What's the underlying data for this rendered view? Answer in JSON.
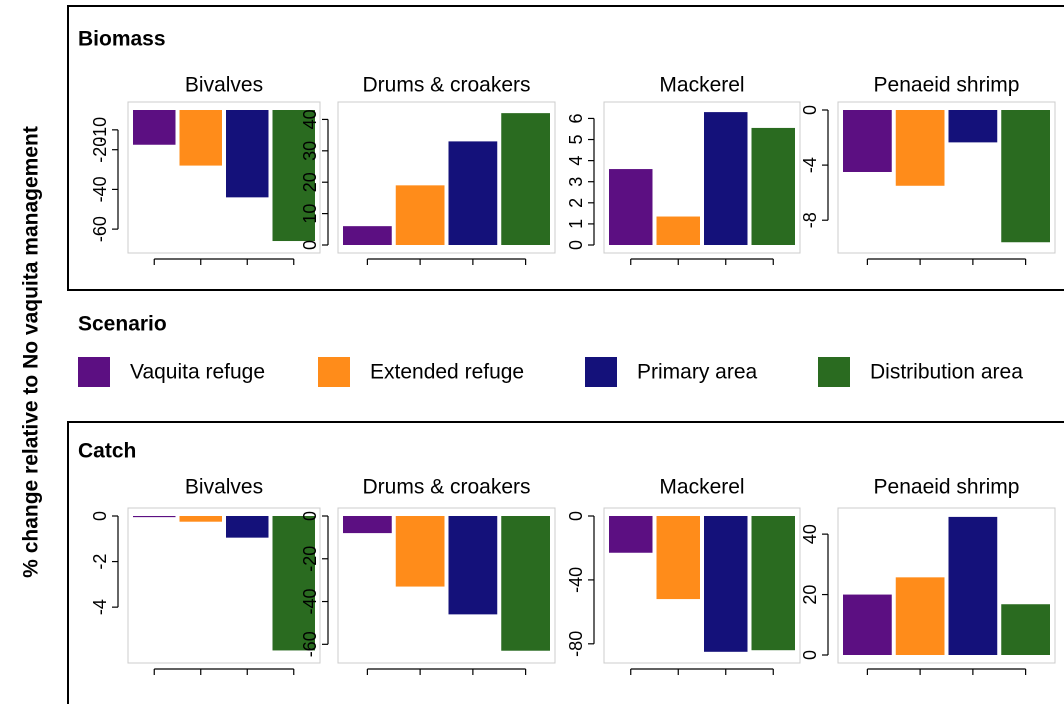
{
  "ylabel": "% change relative to No vaquita management",
  "sections": [
    "Biomass",
    "Catch"
  ],
  "legend": {
    "title": "Scenario",
    "items": [
      {
        "name": "Vaquita refuge",
        "color": "#5c0f82"
      },
      {
        "name": "Extended refuge",
        "color": "#ff8c1a"
      },
      {
        "name": "Primary area",
        "color": "#14117a"
      },
      {
        "name": "Distribution area",
        "color": "#2a6b20"
      }
    ]
  },
  "chart_data": [
    {
      "type": "bar",
      "title": "Bivalves",
      "categories": [
        null,
        null,
        null,
        null
      ],
      "values": [
        -17.5,
        -28,
        -44,
        -66
      ],
      "ylim": [
        -68,
        0
      ],
      "yticks": [
        -10,
        -20,
        -40,
        -60
      ]
    },
    {
      "type": "bar",
      "title": "Drums & croakers",
      "categories": [
        null,
        null,
        null,
        null
      ],
      "values": [
        6,
        19,
        33,
        42
      ],
      "ylim": [
        0,
        43
      ],
      "yticks": [
        0,
        10,
        20,
        30,
        40
      ]
    },
    {
      "type": "bar",
      "title": "Mackerel",
      "categories": [
        null,
        null,
        null,
        null
      ],
      "values": [
        3.6,
        1.35,
        6.3,
        5.55
      ],
      "ylim": [
        0,
        6.4
      ],
      "yticks": [
        0,
        1,
        2,
        3,
        4,
        5,
        6
      ]
    },
    {
      "type": "bar",
      "title": "Penaeid shrimp",
      "categories": [
        null,
        null,
        null,
        null
      ],
      "values": [
        -4.5,
        -5.5,
        -2.35,
        -9.6
      ],
      "ylim": [
        -9.8,
        0
      ],
      "yticks": [
        0,
        -4,
        -8
      ]
    },
    {
      "type": "bar",
      "title": "Bivalves",
      "categories": [
        null,
        null,
        null,
        null
      ],
      "values": [
        -0.05,
        -0.25,
        -0.95,
        -5.9
      ],
      "ylim": [
        -6.1,
        0
      ],
      "yticks": [
        0,
        -2,
        -4
      ]
    },
    {
      "type": "bar",
      "title": "Drums & croakers",
      "categories": [
        null,
        null,
        null,
        null
      ],
      "values": [
        -8,
        -33,
        -46,
        -63
      ],
      "ylim": [
        -65,
        0
      ],
      "yticks": [
        0,
        -20,
        -40,
        -60
      ]
    },
    {
      "type": "bar",
      "title": "Mackerel",
      "categories": [
        null,
        null,
        null,
        null
      ],
      "values": [
        -23,
        -52,
        -85,
        -84
      ],
      "ylim": [
        -87,
        0
      ],
      "yticks": [
        0,
        -40,
        -80
      ]
    },
    {
      "type": "bar",
      "title": "Penaeid shrimp",
      "categories": [
        null,
        null,
        null,
        null
      ],
      "values": [
        20,
        25.7,
        45.7,
        16.8
      ],
      "ylim": [
        0,
        46
      ],
      "yticks": [
        0,
        20,
        40
      ]
    }
  ]
}
